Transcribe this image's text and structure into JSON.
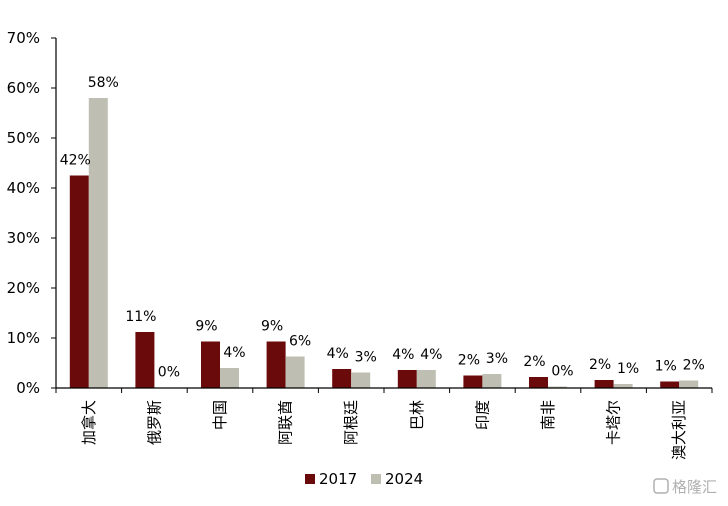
{
  "chart_data": {
    "type": "bar",
    "categories": [
      "加拿大",
      "俄罗斯",
      "中国",
      "阿联酋",
      "阿根廷",
      "巴林",
      "印度",
      "南非",
      "卡塔尔",
      "澳大利亚"
    ],
    "series": [
      {
        "name": "2017",
        "color": "#6b0a0a",
        "values": [
          42.5,
          11.2,
          9.3,
          9.3,
          3.8,
          3.6,
          2.5,
          2.2,
          1.6,
          1.3
        ],
        "labels": [
          "42%",
          "11%",
          "9%",
          "9%",
          "4%",
          "4%",
          "2%",
          "2%",
          "2%",
          "1%"
        ]
      },
      {
        "name": "2024",
        "color": "#bebfb2",
        "values": [
          58.0,
          0.1,
          4.0,
          6.3,
          3.1,
          3.6,
          2.8,
          0.3,
          0.8,
          1.5
        ],
        "labels": [
          "58%",
          "0%",
          "4%",
          "6%",
          "3%",
          "4%",
          "3%",
          "0%",
          "1%",
          "2%"
        ]
      }
    ],
    "ylim": [
      0,
      70
    ],
    "yticks": [
      "0%",
      "10%",
      "20%",
      "30%",
      "40%",
      "50%",
      "60%",
      "70%"
    ],
    "ytick_values": [
      0,
      10,
      20,
      30,
      40,
      50,
      60,
      70
    ],
    "legend_position": "bottom-center",
    "grid": false,
    "title": "",
    "xlabel": "",
    "ylabel": ""
  },
  "watermark": "格隆汇"
}
